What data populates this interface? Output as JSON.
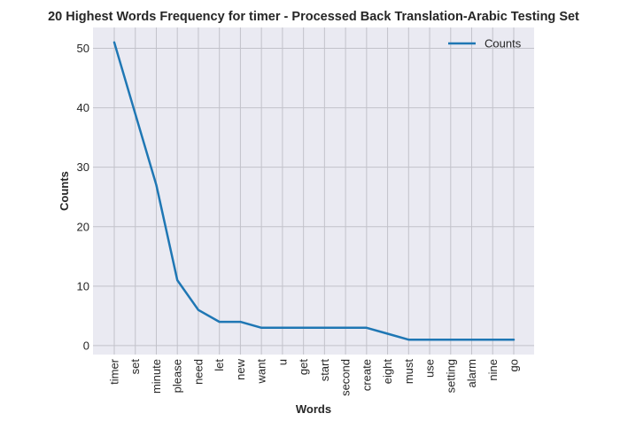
{
  "chart_data": {
    "type": "line",
    "title": "20 Highest Words Frequency for timer - Processed Back Translation-Arabic Testing Set",
    "xlabel": "Words",
    "ylabel": "Counts",
    "categories": [
      "timer",
      "set",
      "minute",
      "please",
      "need",
      "let",
      "new",
      "want",
      "u",
      "get",
      "start",
      "second",
      "create",
      "eight",
      "must",
      "use",
      "setting",
      "alarm",
      "nine",
      "go"
    ],
    "series": [
      {
        "name": "Counts",
        "color": "#1f77b4",
        "values": [
          51,
          39,
          27,
          11,
          6,
          4,
          4,
          3,
          3,
          3,
          3,
          3,
          3,
          2,
          1,
          1,
          1,
          1,
          1,
          1
        ]
      }
    ],
    "ylim": [
      -1.5,
      53.5
    ],
    "yticks": [
      0,
      10,
      20,
      30,
      40,
      50
    ],
    "grid": true,
    "legend_position": "top-right",
    "colors": {
      "plot_background": "#eaeaf2",
      "grid": "#c2c2ca",
      "page_background": "#ffffff",
      "text": "#262626"
    }
  }
}
